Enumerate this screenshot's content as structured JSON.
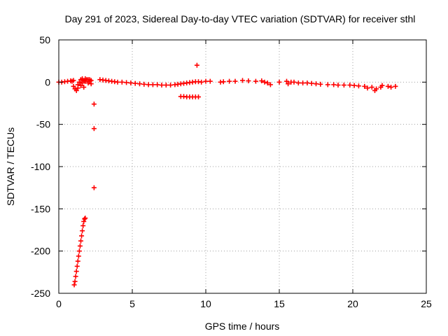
{
  "chart_data": {
    "type": "scatter",
    "title": "Day 291 of 2023, Sidereal Day-to-day VTEC variation (SDTVAR) for receiver sthl",
    "xlabel": "GPS time / hours",
    "ylabel": "SDTVAR / TECUs",
    "xlim": [
      0,
      25
    ],
    "ylim": [
      -250,
      50
    ],
    "xticks": [
      0,
      5,
      10,
      15,
      20,
      25
    ],
    "yticks": [
      50,
      0,
      -50,
      -100,
      -150,
      -200,
      -250
    ],
    "grid": true,
    "marker": "+",
    "series_color": "#ff0000",
    "series": [
      {
        "name": "SDTVAR",
        "points": [
          [
            0.0,
            0
          ],
          [
            0.2,
            0
          ],
          [
            0.4,
            0.5
          ],
          [
            0.6,
            1
          ],
          [
            0.8,
            1.5
          ],
          [
            0.9,
            1
          ],
          [
            1.0,
            2
          ],
          [
            1.0,
            -5
          ],
          [
            1.1,
            -8
          ],
          [
            1.2,
            -10
          ],
          [
            1.3,
            -7
          ],
          [
            1.3,
            -3
          ],
          [
            1.4,
            0
          ],
          [
            1.5,
            -4
          ],
          [
            1.5,
            3
          ],
          [
            1.6,
            -1
          ],
          [
            1.7,
            2
          ],
          [
            1.7,
            -6
          ],
          [
            1.8,
            1
          ],
          [
            1.9,
            3
          ],
          [
            2.0,
            -1
          ],
          [
            2.0,
            3
          ],
          [
            2.1,
            1
          ],
          [
            2.2,
            2
          ],
          [
            1.6,
            4
          ],
          [
            1.8,
            4
          ],
          [
            2.1,
            3
          ],
          [
            2.2,
            -2
          ],
          [
            1.05,
            -240
          ],
          [
            1.1,
            -236
          ],
          [
            1.15,
            -230
          ],
          [
            1.2,
            -224
          ],
          [
            1.25,
            -218
          ],
          [
            1.3,
            -212
          ],
          [
            1.35,
            -206
          ],
          [
            1.4,
            -200
          ],
          [
            1.45,
            -194
          ],
          [
            1.5,
            -188
          ],
          [
            1.55,
            -182
          ],
          [
            1.6,
            -176
          ],
          [
            1.65,
            -170
          ],
          [
            1.7,
            -165
          ],
          [
            1.75,
            -162
          ],
          [
            1.8,
            -161
          ],
          [
            2.4,
            -26
          ],
          [
            2.4,
            -55
          ],
          [
            2.4,
            -125
          ],
          [
            2.8,
            3
          ],
          [
            3.0,
            2.5
          ],
          [
            3.2,
            2
          ],
          [
            3.4,
            1.5
          ],
          [
            3.6,
            1
          ],
          [
            3.8,
            0.5
          ],
          [
            4.0,
            0
          ],
          [
            4.3,
            0
          ],
          [
            4.6,
            -0.5
          ],
          [
            4.9,
            -1
          ],
          [
            5.2,
            -1.5
          ],
          [
            5.5,
            -2
          ],
          [
            5.8,
            -2.5
          ],
          [
            6.1,
            -3
          ],
          [
            6.4,
            -3
          ],
          [
            6.7,
            -3
          ],
          [
            7.0,
            -3.5
          ],
          [
            7.3,
            -3.5
          ],
          [
            7.6,
            -3.5
          ],
          [
            7.9,
            -3
          ],
          [
            8.1,
            -2.5
          ],
          [
            8.3,
            -2
          ],
          [
            8.5,
            -1.5
          ],
          [
            8.7,
            -1
          ],
          [
            8.9,
            -0.5
          ],
          [
            9.1,
            0
          ],
          [
            9.3,
            0.5
          ],
          [
            9.5,
            0.5
          ],
          [
            8.3,
            -17
          ],
          [
            8.5,
            -17
          ],
          [
            8.7,
            -17.5
          ],
          [
            8.9,
            -17.5
          ],
          [
            9.1,
            -17.5
          ],
          [
            9.3,
            -17.5
          ],
          [
            9.5,
            -17.5
          ],
          [
            9.4,
            20
          ],
          [
            9.7,
            0
          ],
          [
            10.0,
            1
          ],
          [
            10.3,
            1
          ],
          [
            11.0,
            0
          ],
          [
            11.2,
            0.5
          ],
          [
            11.6,
            1
          ],
          [
            12.0,
            1
          ],
          [
            12.5,
            2
          ],
          [
            12.9,
            1.5
          ],
          [
            13.4,
            1
          ],
          [
            13.8,
            1.5
          ],
          [
            14.0,
            0
          ],
          [
            14.2,
            -1
          ],
          [
            14.4,
            -3
          ],
          [
            15.0,
            0
          ],
          [
            15.5,
            1
          ],
          [
            15.6,
            -2
          ],
          [
            15.8,
            0
          ],
          [
            16.0,
            0
          ],
          [
            16.3,
            -1
          ],
          [
            16.6,
            -1
          ],
          [
            16.9,
            -1
          ],
          [
            17.2,
            -1.5
          ],
          [
            17.5,
            -2
          ],
          [
            17.8,
            -2.5
          ],
          [
            18.3,
            -3
          ],
          [
            18.7,
            -3
          ],
          [
            19.0,
            -3.5
          ],
          [
            19.4,
            -3.5
          ],
          [
            19.8,
            -3.5
          ],
          [
            20.1,
            -4
          ],
          [
            20.4,
            -4.5
          ],
          [
            20.8,
            -5
          ],
          [
            21.0,
            -7
          ],
          [
            21.3,
            -6
          ],
          [
            21.6,
            -8
          ],
          [
            21.9,
            -6
          ],
          [
            22.0,
            -4
          ],
          [
            22.4,
            -5
          ],
          [
            22.6,
            -6
          ],
          [
            22.9,
            -5
          ],
          [
            21.5,
            -10
          ]
        ]
      }
    ]
  }
}
